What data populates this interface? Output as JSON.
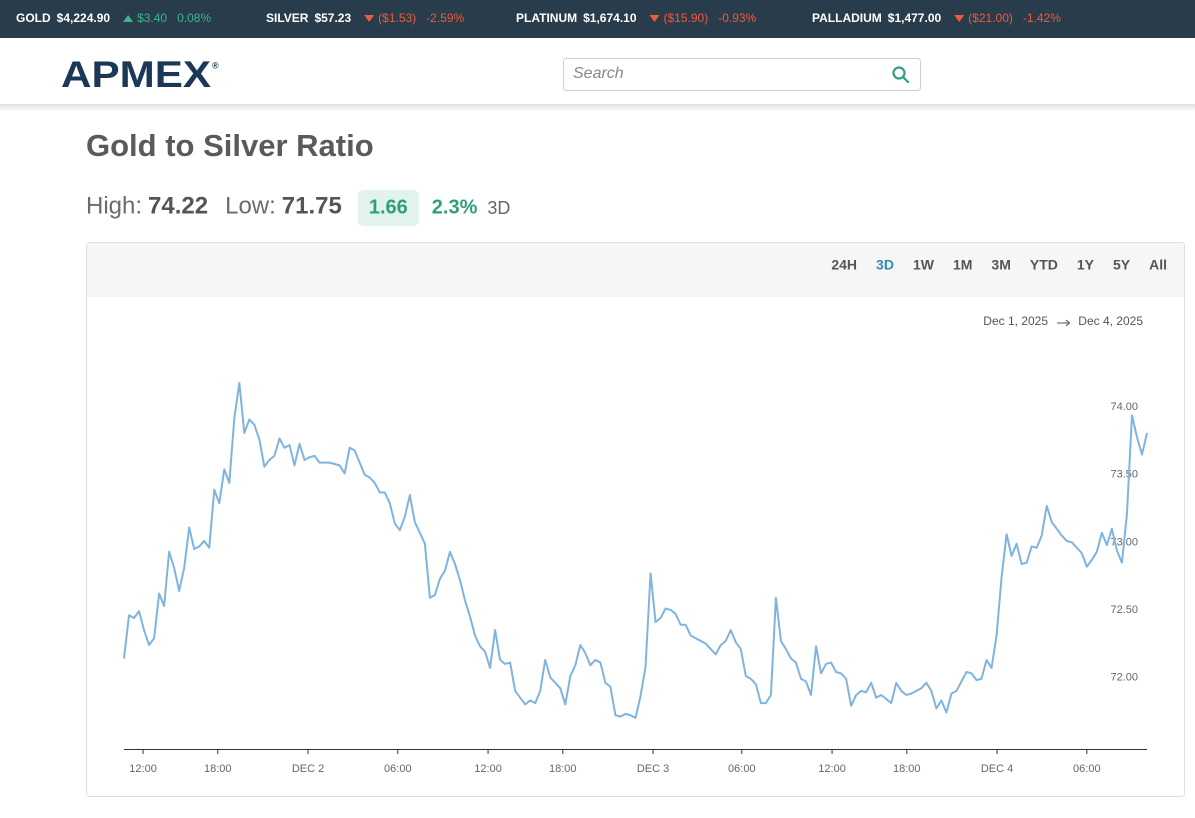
{
  "ticker": [
    {
      "metal": "GOLD",
      "price": "$4,224.90",
      "change": "$3.40",
      "percent": "0.08%",
      "direction": "up"
    },
    {
      "metal": "SILVER",
      "price": "$57.23",
      "change": "($1.53)",
      "percent": "-2.59%",
      "direction": "down"
    },
    {
      "metal": "PLATINUM",
      "price": "$1,674.10",
      "change": "($15.90)",
      "percent": "-0.93%",
      "direction": "down"
    },
    {
      "metal": "PALLADIUM",
      "price": "$1,477.00",
      "change": "($21.00)",
      "percent": "-1.42%",
      "direction": "down"
    }
  ],
  "header": {
    "logo": "APMEX",
    "logo_mark": "®",
    "search_placeholder": "Search"
  },
  "page": {
    "title": "Gold to Silver Ratio",
    "high_label": "High:",
    "high": 74.22,
    "low_label": "Low:",
    "low": 71.75,
    "change": 1.66,
    "change_percent": "2.3%",
    "period": "3D"
  },
  "range_buttons": [
    {
      "label": "24H",
      "active": false
    },
    {
      "label": "3D",
      "active": true
    },
    {
      "label": "1W",
      "active": false
    },
    {
      "label": "1M",
      "active": false
    },
    {
      "label": "3M",
      "active": false
    },
    {
      "label": "YTD",
      "active": false
    },
    {
      "label": "1Y",
      "active": false
    },
    {
      "label": "5Y",
      "active": false
    },
    {
      "label": "All",
      "active": false
    }
  ],
  "date_range": {
    "from": "Dec 1, 2025",
    "to": "Dec 4, 2025"
  },
  "chart_data": {
    "type": "line",
    "color": "#80b4e0",
    "values": [
      72.14,
      72.46,
      72.44,
      72.49,
      72.35,
      72.24,
      72.29,
      72.62,
      72.53,
      72.93,
      72.81,
      72.64,
      72.81,
      73.11,
      72.95,
      72.97,
      73.01,
      72.96,
      73.39,
      73.29,
      73.54,
      73.44,
      73.92,
      74.18,
      73.81,
      73.91,
      73.87,
      73.76,
      73.56,
      73.61,
      73.64,
      73.77,
      73.7,
      73.72,
      73.57,
      73.73,
      73.61,
      73.63,
      73.64,
      73.59,
      73.59,
      73.59,
      73.58,
      73.57,
      73.51,
      73.7,
      73.68,
      73.59,
      73.5,
      73.48,
      73.44,
      73.37,
      73.37,
      73.29,
      73.14,
      73.09,
      73.19,
      73.35,
      73.15,
      73.07,
      72.99,
      72.59,
      72.61,
      72.73,
      72.79,
      72.93,
      72.84,
      72.72,
      72.57,
      72.45,
      72.31,
      72.23,
      72.19,
      72.07,
      72.35,
      72.13,
      72.1,
      72.11,
      71.9,
      71.85,
      71.8,
      71.83,
      71.81,
      71.9,
      72.13,
      72.0,
      71.96,
      71.92,
      71.8,
      72.01,
      72.09,
      72.24,
      72.18,
      72.09,
      72.13,
      72.11,
      71.96,
      71.93,
      71.72,
      71.71,
      71.73,
      71.72,
      71.7,
      71.86,
      72.08,
      72.77,
      72.41,
      72.44,
      72.51,
      72.5,
      72.47,
      72.39,
      72.39,
      72.31,
      72.29,
      72.27,
      72.25,
      72.21,
      72.17,
      72.24,
      72.27,
      72.35,
      72.26,
      72.21,
      72.01,
      71.99,
      71.95,
      71.81,
      71.81,
      71.87,
      72.59,
      72.27,
      72.21,
      72.14,
      72.11,
      71.99,
      71.97,
      71.87,
      72.23,
      72.03,
      72.1,
      72.11,
      72.04,
      72.03,
      71.99,
      71.79,
      71.87,
      71.9,
      71.89,
      71.96,
      71.85,
      71.87,
      71.84,
      71.81,
      71.96,
      71.9,
      71.87,
      71.88,
      71.9,
      71.92,
      71.96,
      71.9,
      71.77,
      71.83,
      71.74,
      71.88,
      71.9,
      71.97,
      72.04,
      72.03,
      71.98,
      71.99,
      72.13,
      72.07,
      72.31,
      72.74,
      73.06,
      72.9,
      72.99,
      72.84,
      72.85,
      72.97,
      72.96,
      73.05,
      73.27,
      73.15,
      73.1,
      73.05,
      73.01,
      73.0,
      72.96,
      72.92,
      72.82,
      72.87,
      72.93,
      73.07,
      72.98,
      73.1,
      72.94,
      72.85,
      73.21,
      73.94,
      73.78,
      73.65,
      73.81
    ],
    "xlim": [
      0,
      204
    ],
    "xticks": [
      {
        "value": 3.8,
        "label": "12:00"
      },
      {
        "value": 18.7,
        "label": "18:00"
      },
      {
        "value": 36.7,
        "label": "DEC 2"
      },
      {
        "value": 54.6,
        "label": "06:00"
      },
      {
        "value": 72.6,
        "label": "12:00"
      },
      {
        "value": 87.5,
        "label": "18:00"
      },
      {
        "value": 105.5,
        "label": "DEC 3"
      },
      {
        "value": 123.2,
        "label": "06:00"
      },
      {
        "value": 141.2,
        "label": "12:00"
      },
      {
        "value": 156.1,
        "label": "18:00"
      },
      {
        "value": 174.1,
        "label": "DEC 4"
      },
      {
        "value": 192.0,
        "label": "06:00"
      }
    ],
    "ylim": [
      71.47,
      74.35
    ],
    "yticks": [
      {
        "value": 72,
        "label": "72.00"
      },
      {
        "value": 72.5,
        "label": "72.50"
      },
      {
        "value": 73,
        "label": "73.00"
      },
      {
        "value": 73.5,
        "label": "73.50"
      },
      {
        "value": 74,
        "label": "74.00"
      }
    ],
    "grid": false
  }
}
